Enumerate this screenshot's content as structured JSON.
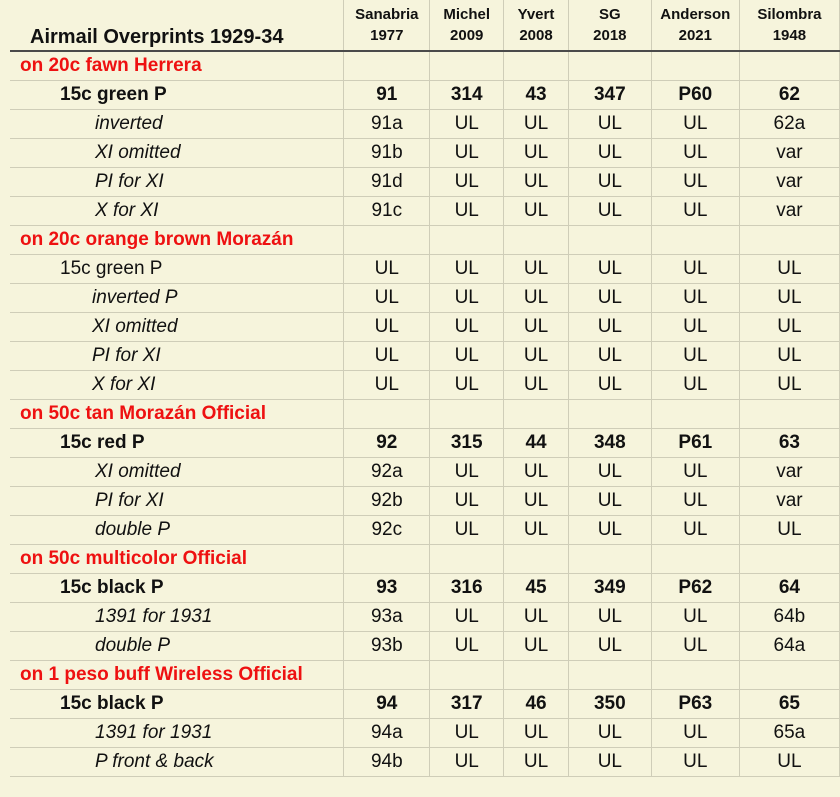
{
  "header": {
    "title": "Airmail Overprints 1929-34",
    "catalogs": [
      {
        "name": "Sanabria",
        "year": "1977"
      },
      {
        "name": "Michel",
        "year": "2009"
      },
      {
        "name": "Yvert",
        "year": "2008"
      },
      {
        "name": "SG",
        "year": "2018"
      },
      {
        "name": "Anderson",
        "year": "2021"
      },
      {
        "name": "Silombra",
        "year": "1948"
      }
    ]
  },
  "rows": [
    {
      "kind": "section",
      "label": "on 20c fawn Herrera"
    },
    {
      "kind": "main",
      "label": "15c green P",
      "values": [
        "91",
        "314",
        "43",
        "347",
        "P60",
        "62"
      ]
    },
    {
      "kind": "var",
      "label": "inverted",
      "values": [
        "91a",
        "UL",
        "UL",
        "UL",
        "UL",
        "62a"
      ]
    },
    {
      "kind": "var",
      "label": "XI omitted",
      "values": [
        "91b",
        "UL",
        "UL",
        "UL",
        "UL",
        "var"
      ]
    },
    {
      "kind": "var",
      "label": "PI for XI",
      "values": [
        "91d",
        "UL",
        "UL",
        "UL",
        "UL",
        "var"
      ]
    },
    {
      "kind": "var",
      "label": "X for XI",
      "values": [
        "91c",
        "UL",
        "UL",
        "UL",
        "UL",
        "var"
      ]
    },
    {
      "kind": "section",
      "label": "on 20c orange brown Morazán"
    },
    {
      "kind": "main-plain",
      "label": "15c green P",
      "values": [
        "UL",
        "UL",
        "UL",
        "UL",
        "UL",
        "UL"
      ]
    },
    {
      "kind": "var",
      "label": "inverted P",
      "values": [
        "UL",
        "UL",
        "UL",
        "UL",
        "UL",
        "UL"
      ]
    },
    {
      "kind": "var",
      "label": "XI omitted",
      "values": [
        "UL",
        "UL",
        "UL",
        "UL",
        "UL",
        "UL"
      ]
    },
    {
      "kind": "var",
      "label": "PI for XI",
      "values": [
        "UL",
        "UL",
        "UL",
        "UL",
        "UL",
        "UL"
      ]
    },
    {
      "kind": "var",
      "label": "X for XI",
      "values": [
        "UL",
        "UL",
        "UL",
        "UL",
        "UL",
        "UL"
      ]
    },
    {
      "kind": "section",
      "label": "on 50c tan Morazán Official"
    },
    {
      "kind": "main",
      "label": "15c red P",
      "values": [
        "92",
        "315",
        "44",
        "348",
        "P61",
        "63"
      ]
    },
    {
      "kind": "var",
      "label": "XI omitted",
      "values": [
        "92a",
        "UL",
        "UL",
        "UL",
        "UL",
        "var"
      ]
    },
    {
      "kind": "var",
      "label": "PI for XI",
      "values": [
        "92b",
        "UL",
        "UL",
        "UL",
        "UL",
        "var"
      ]
    },
    {
      "kind": "var",
      "label": "double P",
      "values": [
        "92c",
        "UL",
        "UL",
        "UL",
        "UL",
        "UL"
      ]
    },
    {
      "kind": "section",
      "label": "on 50c multicolor Official"
    },
    {
      "kind": "main",
      "label": "15c black P",
      "values": [
        "93",
        "316",
        "45",
        "349",
        "P62",
        "64"
      ]
    },
    {
      "kind": "var",
      "label": "1391 for 1931",
      "values": [
        "93a",
        "UL",
        "UL",
        "UL",
        "UL",
        "64b"
      ]
    },
    {
      "kind": "var",
      "label": "double P",
      "values": [
        "93b",
        "UL",
        "UL",
        "UL",
        "UL",
        "64a"
      ]
    },
    {
      "kind": "section",
      "label": "on 1 peso buff Wireless Official"
    },
    {
      "kind": "main",
      "label": "15c black P",
      "values": [
        "94",
        "317",
        "46",
        "350",
        "P63",
        "65"
      ]
    },
    {
      "kind": "var",
      "label": "1391 for 1931",
      "values": [
        "94a",
        "UL",
        "UL",
        "UL",
        "UL",
        "65a"
      ]
    },
    {
      "kind": "var",
      "label": "P front & back",
      "values": [
        "94b",
        "UL",
        "UL",
        "UL",
        "UL",
        "UL"
      ]
    }
  ]
}
